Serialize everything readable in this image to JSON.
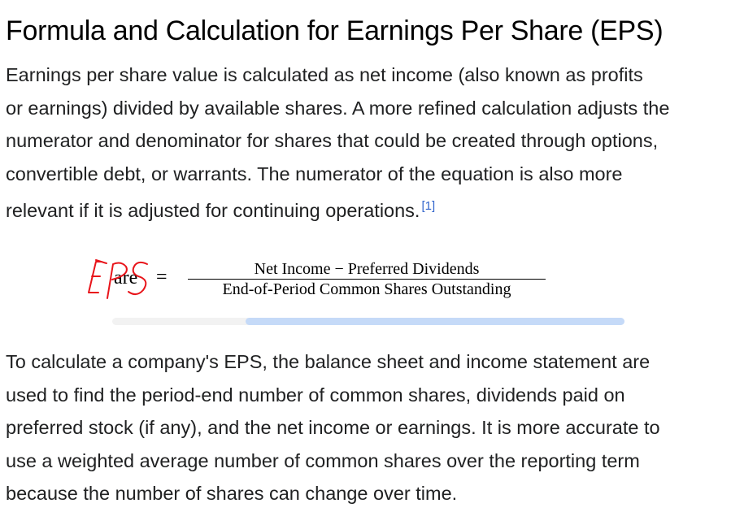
{
  "article": {
    "heading": "Formula and Calculation for Earnings Per Share (EPS)",
    "paragraph1": {
      "lines": [
        "Earnings per share value is calculated as net income (also known as profits",
        "or earnings) divided by available shares. A more refined calculation adjusts the",
        "numerator and denominator for shares that could be created through options,",
        "convertible debt, or warrants. The numerator of the equation is also more",
        "relevant if it is adjusted for continuing operations."
      ],
      "citation": "[1]"
    },
    "formula": {
      "lhs": "are",
      "equals": "=",
      "numerator": "Net Income − Preferred Dividends",
      "denominator": "End-of-Period Common Shares Outstanding",
      "handwritten_annotation": "EPS",
      "scroll_position": 0.26
    },
    "paragraph2": {
      "lines": [
        "To calculate a company's EPS, the balance sheet and income statement are",
        "used to find the period-end number of common shares, dividends paid on",
        "preferred stock (if any), and the net income or earnings. It is more accurate to",
        "use a weighted average number of common shares over the reporting term",
        "because the number of shares can change over time."
      ]
    }
  },
  "colors": {
    "text": "#202122",
    "heading": "#000000",
    "citation_link": "#3366cc",
    "annotation": "#e8141a",
    "scrollbar_track": "#f2f2f2",
    "scrollbar_thumb": "#c5daf8"
  }
}
